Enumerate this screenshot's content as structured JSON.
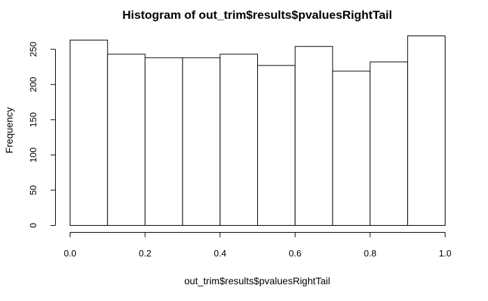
{
  "chart_data": {
    "type": "bar",
    "title": "Histogram of out_trim$results$pvaluesRightTail",
    "xlabel": "out_trim$results$pvaluesRightTail",
    "ylabel": "Frequency",
    "bins": [
      [
        0.0,
        0.1
      ],
      [
        0.1,
        0.2
      ],
      [
        0.2,
        0.3
      ],
      [
        0.3,
        0.4
      ],
      [
        0.4,
        0.5
      ],
      [
        0.5,
        0.6
      ],
      [
        0.6,
        0.7
      ],
      [
        0.7,
        0.8
      ],
      [
        0.8,
        0.9
      ],
      [
        0.9,
        1.0
      ]
    ],
    "values": [
      263,
      243,
      238,
      238,
      243,
      227,
      254,
      219,
      232,
      269
    ],
    "xlim": [
      0,
      1
    ],
    "ylim": [
      0,
      269
    ],
    "xticks": [
      0.0,
      0.2,
      0.4,
      0.6,
      0.8,
      1.0
    ],
    "xtick_labels": [
      "0.0",
      "0.2",
      "0.4",
      "0.6",
      "0.8",
      "1.0"
    ],
    "yticks": [
      0,
      50,
      100,
      150,
      200,
      250
    ],
    "ytick_labels": [
      "0",
      "50",
      "100",
      "150",
      "200",
      "250"
    ],
    "grid": false,
    "legend": "none",
    "bar_fill": "#ffffff",
    "bar_stroke": "#000000"
  }
}
